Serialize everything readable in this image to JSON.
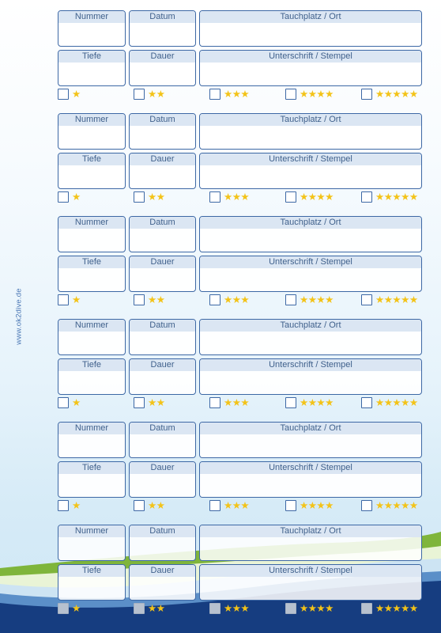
{
  "sidebar_url": "www.ok2dive.de",
  "fields": {
    "number": "Nummer",
    "date": "Datum",
    "site": "Tauchplatz / Ort",
    "depth": "Tiefe",
    "duration": "Dauer",
    "signature": "Unterschrift / Stempel"
  },
  "ratings": [
    "★",
    "★★",
    "★★★",
    "★★★★",
    "★★★★★"
  ],
  "entry_count": 6,
  "colors": {
    "border": "#3d68a5",
    "header_fill": "#dbe6f3",
    "label_text": "#40618c",
    "star": "#f3c318",
    "wave_navy": "#163d80",
    "wave_green": "#7fb53b"
  }
}
